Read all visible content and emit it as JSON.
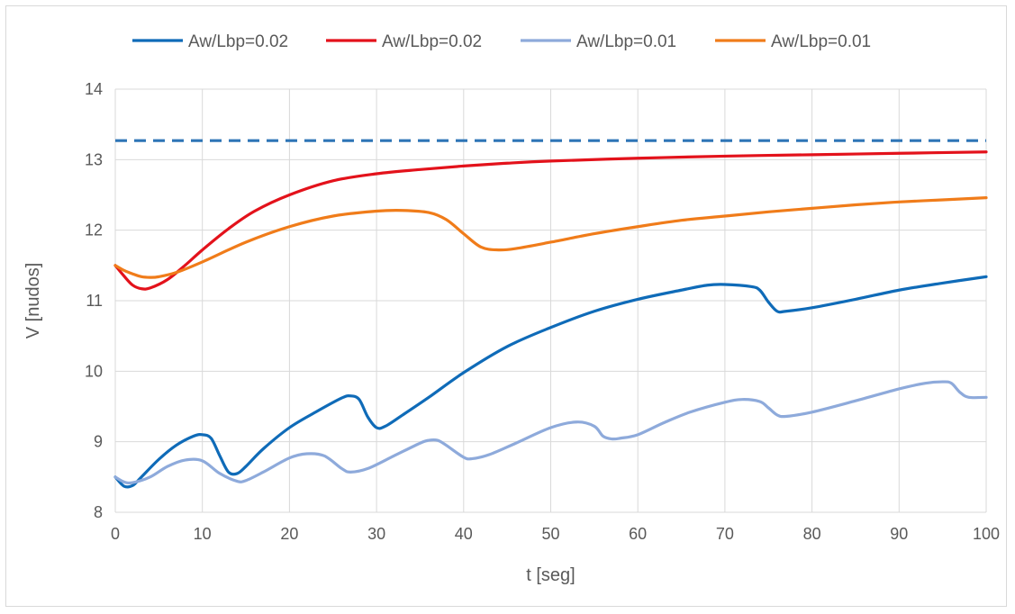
{
  "chart_data": {
    "type": "line",
    "title": "",
    "xlabel": "t [seg]",
    "ylabel": "V [nudos]",
    "xlim": [
      0,
      100
    ],
    "ylim": [
      8,
      14
    ],
    "x_ticks": [
      0,
      10,
      20,
      30,
      40,
      50,
      60,
      70,
      80,
      90,
      100
    ],
    "y_ticks": [
      8,
      9,
      10,
      11,
      12,
      13,
      14
    ],
    "grid": true,
    "legend_position": "top",
    "reference_line": {
      "y": 13.27,
      "style": "dashed",
      "color": "#2e75b6"
    },
    "series": [
      {
        "name": "Aw/Lbp=0.02",
        "color": "#0f6bb8",
        "points": [
          [
            0,
            8.5
          ],
          [
            1,
            8.37
          ],
          [
            2,
            8.38
          ],
          [
            3,
            8.5
          ],
          [
            5,
            8.75
          ],
          [
            7,
            8.95
          ],
          [
            9,
            9.08
          ],
          [
            10,
            9.1
          ],
          [
            11,
            9.05
          ],
          [
            12,
            8.8
          ],
          [
            13,
            8.57
          ],
          [
            14,
            8.55
          ],
          [
            15,
            8.65
          ],
          [
            17,
            8.9
          ],
          [
            20,
            9.2
          ],
          [
            23,
            9.42
          ],
          [
            26,
            9.62
          ],
          [
            27,
            9.65
          ],
          [
            28,
            9.6
          ],
          [
            29,
            9.35
          ],
          [
            30,
            9.2
          ],
          [
            31,
            9.22
          ],
          [
            33,
            9.38
          ],
          [
            36,
            9.63
          ],
          [
            40,
            9.98
          ],
          [
            45,
            10.35
          ],
          [
            50,
            10.62
          ],
          [
            55,
            10.85
          ],
          [
            60,
            11.02
          ],
          [
            65,
            11.15
          ],
          [
            68,
            11.22
          ],
          [
            70,
            11.23
          ],
          [
            73,
            11.2
          ],
          [
            74,
            11.15
          ],
          [
            75,
            10.98
          ],
          [
            76,
            10.85
          ],
          [
            77,
            10.85
          ],
          [
            80,
            10.9
          ],
          [
            85,
            11.02
          ],
          [
            90,
            11.15
          ],
          [
            95,
            11.25
          ],
          [
            100,
            11.34
          ]
        ]
      },
      {
        "name": "Aw/Lbp=0.02",
        "color": "#e3121b",
        "points": [
          [
            0,
            11.5
          ],
          [
            1,
            11.35
          ],
          [
            2,
            11.22
          ],
          [
            3,
            11.17
          ],
          [
            4,
            11.18
          ],
          [
            6,
            11.3
          ],
          [
            8,
            11.5
          ],
          [
            10,
            11.72
          ],
          [
            13,
            12.02
          ],
          [
            16,
            12.27
          ],
          [
            20,
            12.5
          ],
          [
            25,
            12.7
          ],
          [
            30,
            12.8
          ],
          [
            35,
            12.86
          ],
          [
            40,
            12.91
          ],
          [
            45,
            12.95
          ],
          [
            50,
            12.98
          ],
          [
            60,
            13.02
          ],
          [
            70,
            13.05
          ],
          [
            80,
            13.07
          ],
          [
            90,
            13.09
          ],
          [
            100,
            13.11
          ]
        ]
      },
      {
        "name": "Aw/Lbp=0.01",
        "color": "#8eaadb",
        "points": [
          [
            0,
            8.5
          ],
          [
            1,
            8.43
          ],
          [
            2,
            8.42
          ],
          [
            4,
            8.5
          ],
          [
            6,
            8.65
          ],
          [
            8,
            8.74
          ],
          [
            10,
            8.73
          ],
          [
            12,
            8.55
          ],
          [
            14,
            8.44
          ],
          [
            15,
            8.45
          ],
          [
            17,
            8.57
          ],
          [
            20,
            8.77
          ],
          [
            22,
            8.83
          ],
          [
            24,
            8.8
          ],
          [
            26,
            8.62
          ],
          [
            27,
            8.57
          ],
          [
            29,
            8.62
          ],
          [
            32,
            8.8
          ],
          [
            35,
            8.98
          ],
          [
            36,
            9.02
          ],
          [
            37,
            9.02
          ],
          [
            38,
            8.95
          ],
          [
            40,
            8.78
          ],
          [
            41,
            8.76
          ],
          [
            43,
            8.82
          ],
          [
            46,
            8.98
          ],
          [
            50,
            9.2
          ],
          [
            53,
            9.28
          ],
          [
            55,
            9.22
          ],
          [
            56,
            9.08
          ],
          [
            57,
            9.04
          ],
          [
            58,
            9.05
          ],
          [
            60,
            9.1
          ],
          [
            63,
            9.27
          ],
          [
            66,
            9.42
          ],
          [
            70,
            9.56
          ],
          [
            72,
            9.6
          ],
          [
            74,
            9.57
          ],
          [
            75,
            9.48
          ],
          [
            76,
            9.38
          ],
          [
            77,
            9.36
          ],
          [
            80,
            9.42
          ],
          [
            85,
            9.58
          ],
          [
            90,
            9.75
          ],
          [
            93,
            9.83
          ],
          [
            95,
            9.85
          ],
          [
            96,
            9.83
          ],
          [
            97,
            9.7
          ],
          [
            98,
            9.63
          ],
          [
            100,
            9.63
          ]
        ]
      },
      {
        "name": "Aw/Lbp=0.01",
        "color": "#f07c1a",
        "points": [
          [
            0,
            11.5
          ],
          [
            1,
            11.43
          ],
          [
            2,
            11.38
          ],
          [
            3,
            11.34
          ],
          [
            4,
            11.33
          ],
          [
            5,
            11.34
          ],
          [
            7,
            11.4
          ],
          [
            10,
            11.55
          ],
          [
            15,
            11.83
          ],
          [
            20,
            12.05
          ],
          [
            25,
            12.2
          ],
          [
            30,
            12.27
          ],
          [
            33,
            12.28
          ],
          [
            36,
            12.25
          ],
          [
            38,
            12.15
          ],
          [
            40,
            11.95
          ],
          [
            42,
            11.76
          ],
          [
            44,
            11.72
          ],
          [
            46,
            11.74
          ],
          [
            50,
            11.83
          ],
          [
            55,
            11.95
          ],
          [
            60,
            12.05
          ],
          [
            65,
            12.14
          ],
          [
            70,
            12.2
          ],
          [
            75,
            12.26
          ],
          [
            80,
            12.31
          ],
          [
            85,
            12.36
          ],
          [
            90,
            12.4
          ],
          [
            95,
            12.43
          ],
          [
            100,
            12.46
          ]
        ]
      }
    ]
  }
}
